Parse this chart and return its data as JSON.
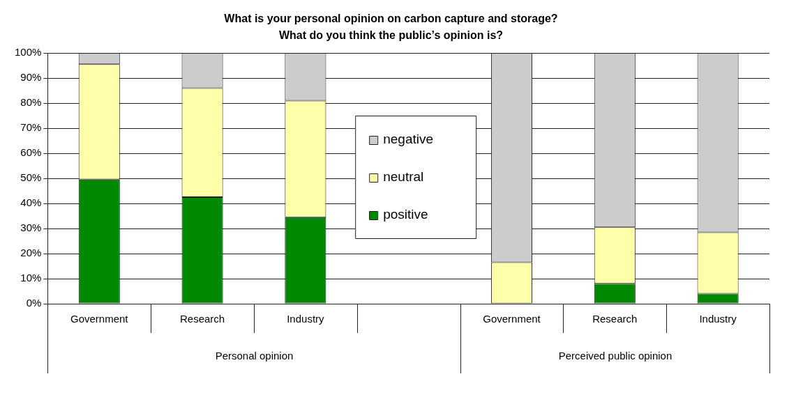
{
  "chart_data": {
    "type": "bar",
    "stacked": true,
    "title": "What is your personal opinion on carbon capture and storage?\nWhat do you think the public’s opinion is?",
    "categories": [
      "Government",
      "Research",
      "Industry",
      null,
      "Government",
      "Research",
      "Industry"
    ],
    "series": [
      {
        "name": "positive",
        "color": "#008800",
        "values": [
          49.5,
          42.5,
          34.5,
          null,
          0,
          8,
          4
        ]
      },
      {
        "name": "neutral",
        "color": "#ffffaa",
        "values": [
          46,
          43.5,
          46.5,
          null,
          16.5,
          22.5,
          24.5
        ]
      },
      {
        "name": "negative",
        "color": "#cccccc",
        "values": [
          4.5,
          14,
          19,
          null,
          83.5,
          69.5,
          71.5
        ]
      }
    ],
    "ylim": [
      0,
      100
    ],
    "yticks": [
      {
        "value": 0,
        "label": "0%"
      },
      {
        "value": 10,
        "label": "10%"
      },
      {
        "value": 20,
        "label": "20%"
      },
      {
        "value": 30,
        "label": "30%"
      },
      {
        "value": 40,
        "label": "40%"
      },
      {
        "value": 50,
        "label": "50%"
      },
      {
        "value": 60,
        "label": "60%"
      },
      {
        "value": 70,
        "label": "70%"
      },
      {
        "value": 80,
        "label": "80%"
      },
      {
        "value": 90,
        "label": "90%"
      },
      {
        "value": 100,
        "label": "100%"
      }
    ],
    "grid": "y",
    "legend": "top",
    "annotations": [
      "Personal opinion",
      "Perceived public opinion"
    ]
  }
}
